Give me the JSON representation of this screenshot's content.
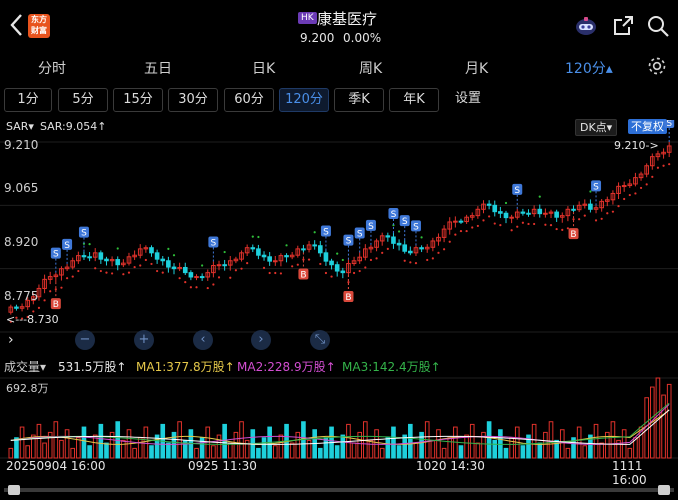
{
  "header": {
    "logo_text": "东方财富",
    "market_tag": "HK",
    "stock_name": "康基医疗",
    "price": "9.200",
    "change_pct": "0.00%",
    "icons": [
      "back-arrow-icon",
      "robot-avatar-icon",
      "share-icon",
      "search-icon"
    ]
  },
  "period_tabs": [
    {
      "label": "分时"
    },
    {
      "label": "五日"
    },
    {
      "label": "日K"
    },
    {
      "label": "周K"
    },
    {
      "label": "月K"
    },
    {
      "label": "120分▴"
    }
  ],
  "minute_chips": [
    {
      "label": "1分"
    },
    {
      "label": "5分"
    },
    {
      "label": "15分"
    },
    {
      "label": "30分"
    },
    {
      "label": "60分"
    },
    {
      "label": "120分"
    },
    {
      "label": "季K"
    },
    {
      "label": "年K"
    },
    {
      "label": "设置"
    }
  ],
  "indicator": {
    "name": "SAR▾",
    "value": "SAR:9.054↑",
    "dk_button": "DK点▾",
    "fq_button": "不复权"
  },
  "price_axis": [
    "9.210",
    "9.065",
    "8.920",
    "8.775",
    "8.730"
  ],
  "high_tag": "9.210->",
  "low_tag": "<---8.730",
  "volume": {
    "selector": "成交量▾",
    "main": "531.5万股↑",
    "ma1": "MA1:377.8万股↑",
    "ma2": "MA2:228.9万股↑",
    "ma3": "MA3:142.4万股↑",
    "max_label": "692.8万"
  },
  "dates": [
    "20250904 16:00",
    "0925 11:30",
    "1020 14:30",
    "1111 16:00"
  ],
  "colors": {
    "up": "#e0322b",
    "down": "#1ed0dc",
    "sar_up": "#e0322b",
    "sar_down": "#2fbf3a",
    "accent": "#4a8fe8",
    "signal_s": "#3f78d8",
    "signal_b": "#d9483b"
  },
  "chart_data": {
    "type": "candlestick",
    "interval": "120分",
    "y_range": [
      8.73,
      9.21
    ],
    "annotations": [
      "S",
      "B"
    ],
    "close_series": [
      8.79,
      8.81,
      8.84,
      8.87,
      8.89,
      8.91,
      8.92,
      8.93,
      8.91,
      8.9,
      8.92,
      8.94,
      8.93,
      8.91,
      8.89,
      8.88,
      8.87,
      8.88,
      8.9,
      8.91,
      8.93,
      8.94,
      8.92,
      8.91,
      8.92,
      8.94,
      8.95,
      8.93,
      8.9,
      8.88,
      8.91,
      8.94,
      8.96,
      8.97,
      8.95,
      8.93,
      8.94,
      8.96,
      8.99,
      9.01,
      9.02,
      9.04,
      9.05,
      9.03,
      9.02,
      9.03,
      9.04,
      9.03,
      9.02,
      9.04,
      9.05,
      9.04,
      9.06,
      9.08,
      9.1,
      9.12,
      9.15,
      9.18,
      9.2
    ]
  }
}
